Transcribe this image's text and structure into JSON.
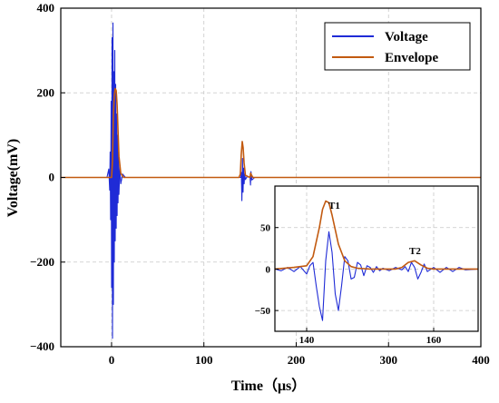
{
  "chart_data": [
    {
      "type": "line",
      "title": "",
      "xlabel": "Time（μs）",
      "ylabel": "Voltage(mV)",
      "xlim": [
        -55,
        400
      ],
      "ylim": [
        -400,
        400
      ],
      "xticks": [
        "0",
        "100",
        "200",
        "300",
        "400"
      ],
      "yticks": [
        "400",
        "200",
        "0",
        "−200",
        "−400"
      ],
      "grid": true,
      "legend_position": "top-right",
      "series": [
        {
          "name": "Voltage",
          "color": "#1f2bd6",
          "x": [
            -55,
            -5,
            -3,
            -2,
            -1.5,
            -1,
            -0.5,
            0,
            0.5,
            1,
            1.5,
            2,
            2.5,
            3,
            3.5,
            4,
            4.5,
            5,
            5.5,
            6,
            6.5,
            7,
            7.5,
            8,
            9,
            10,
            12,
            15,
            140,
            140.6,
            141.2,
            141.8,
            142.4,
            143,
            143.6,
            144.2,
            145,
            147,
            150,
            150.5,
            151,
            152,
            155,
            400
          ],
          "y": [
            0,
            0,
            20,
            -30,
            60,
            -100,
            180,
            -260,
            330,
            -380,
            365,
            -300,
            250,
            -200,
            300,
            -150,
            220,
            -120,
            150,
            -90,
            100,
            -60,
            60,
            -40,
            25,
            -15,
            8,
            0,
            0,
            12,
            -55,
            45,
            -35,
            22,
            -15,
            8,
            -5,
            3,
            0,
            -18,
            14,
            -6,
            0,
            0
          ]
        },
        {
          "name": "Envelope",
          "color": "#c25a10",
          "x": [
            -55,
            0,
            1,
            2,
            3,
            4,
            5,
            6,
            7,
            8,
            10,
            13,
            138,
            139.5,
            140.5,
            141.5,
            142.5,
            143.5,
            145,
            150,
            150.6,
            151.5,
            153,
            400
          ],
          "y": [
            0,
            0,
            40,
            150,
            195,
            210,
            205,
            170,
            110,
            50,
            10,
            0,
            0,
            8,
            55,
            85,
            70,
            35,
            5,
            0,
            10,
            6,
            0,
            0
          ]
        }
      ],
      "annotations": []
    },
    {
      "type": "line",
      "title": "",
      "xlabel": "",
      "ylabel": "",
      "xlim": [
        135,
        167
      ],
      "ylim": [
        -75,
        100
      ],
      "xticks": [
        "140",
        "160"
      ],
      "yticks": [
        "50",
        "0",
        "−50"
      ],
      "grid": true,
      "series": [
        {
          "name": "",
          "color": "#1f2bd6",
          "x": [
            135,
            136,
            137,
            138,
            139,
            140,
            140.5,
            141,
            141.5,
            142,
            142.5,
            143,
            143.5,
            144,
            144.5,
            145,
            145.5,
            146,
            146.5,
            147,
            147.5,
            148,
            148.5,
            149,
            149.5,
            150,
            150.5,
            151,
            151.5,
            152,
            153,
            154,
            155,
            155.5,
            156,
            156.5,
            157,
            157.5,
            158,
            158.5,
            159,
            160,
            161,
            162,
            163,
            164,
            165,
            167
          ],
          "y": [
            0,
            -2,
            2,
            -3,
            3,
            -6,
            4,
            8,
            -20,
            -45,
            -62,
            10,
            45,
            20,
            -30,
            -50,
            -20,
            15,
            10,
            -12,
            -10,
            8,
            5,
            -8,
            4,
            2,
            -4,
            3,
            -2,
            1,
            -2,
            2,
            -1,
            3,
            -3,
            8,
            2,
            -12,
            -4,
            6,
            -3,
            2,
            -4,
            2,
            -3,
            2,
            -1,
            0
          ]
        },
        {
          "name": "",
          "color": "#c25a10",
          "x": [
            135,
            138,
            140,
            141,
            142,
            142.5,
            143,
            143.5,
            144,
            145,
            146,
            147,
            148,
            150,
            154,
            155,
            156,
            157,
            158,
            159,
            160,
            163,
            167
          ],
          "y": [
            0,
            2,
            4,
            15,
            50,
            72,
            82,
            80,
            65,
            30,
            10,
            3,
            1,
            0,
            0,
            2,
            8,
            10,
            5,
            1,
            0,
            0,
            0
          ]
        }
      ],
      "annotations": [
        "T1",
        "T2"
      ]
    }
  ]
}
